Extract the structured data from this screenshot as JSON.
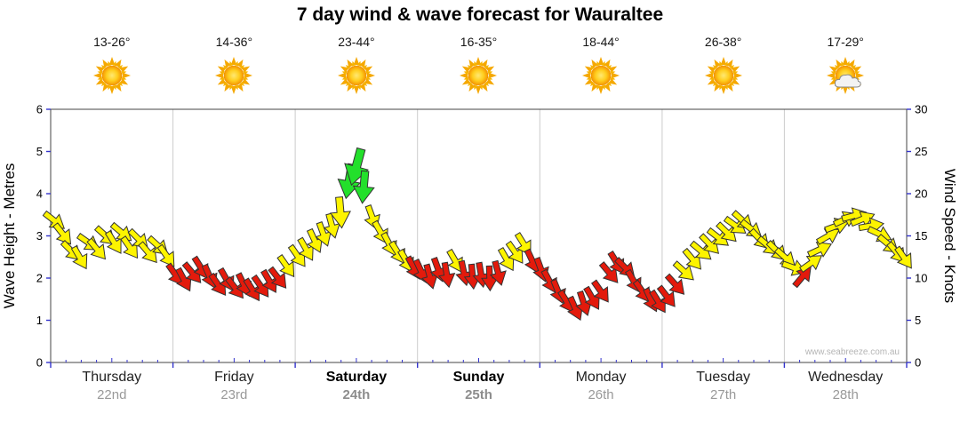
{
  "title": "7 day wind & wave forecast for Wauraltee",
  "watermark": "www.seabreeze.com.au",
  "days": [
    {
      "name": "Thursday",
      "date": "22nd",
      "temp": "13-26°",
      "icon": "sun",
      "weekend": false
    },
    {
      "name": "Friday",
      "date": "23rd",
      "temp": "14-36°",
      "icon": "sun",
      "weekend": false
    },
    {
      "name": "Saturday",
      "date": "24th",
      "temp": "23-44°",
      "icon": "sun",
      "weekend": true
    },
    {
      "name": "Sunday",
      "date": "25th",
      "temp": "16-35°",
      "icon": "sun",
      "weekend": true
    },
    {
      "name": "Monday",
      "date": "26th",
      "temp": "18-44°",
      "icon": "sun",
      "weekend": false
    },
    {
      "name": "Tuesday",
      "date": "27th",
      "temp": "26-38°",
      "icon": "sun",
      "weekend": false
    },
    {
      "name": "Wednesday",
      "date": "28th",
      "temp": "17-29°",
      "icon": "sun-cloud",
      "weekend": false
    }
  ],
  "axes": {
    "left_label": "Wave Height - Metres",
    "right_label": "Wind Speed - Knots",
    "left_ticks": [
      0,
      1,
      2,
      3,
      4,
      5,
      6
    ],
    "right_ticks": [
      0,
      5,
      10,
      15,
      20,
      25,
      30
    ],
    "left_range": [
      0,
      6
    ],
    "right_range": [
      0,
      30
    ]
  },
  "colors": {
    "red": "#e31a0c",
    "yellow": "#fdf400",
    "green": "#23e02b",
    "arrow_outline": "#333333",
    "tick": "#3333cc",
    "grid": "#cccccc",
    "border": "#444444",
    "watermark": "#b5b5b5"
  },
  "chart_data": {
    "type": "wind-arrows",
    "title": "7 day wind & wave forecast for Wauraltee",
    "x_axis": "time in days (0 = Thursday 22nd start, 7 = end of Wednesday 28th)",
    "y_axis": "wind speed in knots (right axis 0-30); left axis wave height metres 0-6",
    "point_format": [
      "t_days",
      "knots",
      "direction_deg",
      "color(r|y|g)",
      "scale(optional)"
    ],
    "points": [
      [
        0.03,
        16.8,
        38,
        "y"
      ],
      [
        0.1,
        15.2,
        52,
        "y"
      ],
      [
        0.17,
        13.2,
        45,
        "y"
      ],
      [
        0.24,
        12.4,
        60,
        "y"
      ],
      [
        0.31,
        14.2,
        35,
        "y"
      ],
      [
        0.38,
        13.4,
        50,
        "y"
      ],
      [
        0.45,
        15.0,
        42,
        "y"
      ],
      [
        0.52,
        14.2,
        58,
        "y"
      ],
      [
        0.58,
        15.4,
        40,
        "y"
      ],
      [
        0.65,
        13.6,
        55,
        "y"
      ],
      [
        0.72,
        14.6,
        45,
        "y"
      ],
      [
        0.8,
        13.0,
        50,
        "y"
      ],
      [
        0.88,
        13.8,
        42,
        "y"
      ],
      [
        0.95,
        12.6,
        55,
        "y"
      ],
      [
        1.02,
        10.4,
        55,
        "r"
      ],
      [
        1.09,
        9.8,
        62,
        "r"
      ],
      [
        1.16,
        10.6,
        50,
        "r"
      ],
      [
        1.23,
        11.2,
        58,
        "r"
      ],
      [
        1.3,
        10.2,
        66,
        "r"
      ],
      [
        1.37,
        9.2,
        55,
        "r"
      ],
      [
        1.44,
        9.8,
        60,
        "r"
      ],
      [
        1.51,
        8.8,
        52,
        "r"
      ],
      [
        1.58,
        9.2,
        64,
        "r"
      ],
      [
        1.65,
        8.6,
        58,
        "r"
      ],
      [
        1.72,
        9.0,
        55,
        "r"
      ],
      [
        1.79,
        9.6,
        60,
        "r"
      ],
      [
        1.86,
        10.0,
        52,
        "r"
      ],
      [
        1.93,
        11.4,
        55,
        "y"
      ],
      [
        2.02,
        12.6,
        55,
        "y"
      ],
      [
        2.09,
        13.4,
        60,
        "y"
      ],
      [
        2.16,
        14.4,
        65,
        "y"
      ],
      [
        2.23,
        15.2,
        70,
        "y"
      ],
      [
        2.3,
        16.2,
        75,
        "y"
      ],
      [
        2.37,
        17.8,
        85,
        "y",
        1.25
      ],
      [
        2.44,
        21.5,
        100,
        "g",
        1.4
      ],
      [
        2.5,
        23.2,
        105,
        "g",
        1.5
      ],
      [
        2.56,
        20.8,
        95,
        "g",
        1.3
      ],
      [
        2.63,
        17.2,
        70,
        "y"
      ],
      [
        2.7,
        15.4,
        60,
        "y"
      ],
      [
        2.77,
        14.0,
        62,
        "y"
      ],
      [
        2.84,
        13.0,
        58,
        "y"
      ],
      [
        2.91,
        12.0,
        60,
        "y"
      ],
      [
        2.97,
        11.2,
        62,
        "r"
      ],
      [
        3.03,
        10.8,
        65,
        "r"
      ],
      [
        3.1,
        10.2,
        75,
        "r"
      ],
      [
        3.17,
        11.0,
        70,
        "r"
      ],
      [
        3.24,
        10.4,
        80,
        "r"
      ],
      [
        3.31,
        12.0,
        60,
        "y"
      ],
      [
        3.38,
        10.6,
        78,
        "r"
      ],
      [
        3.45,
        10.2,
        85,
        "r"
      ],
      [
        3.52,
        10.4,
        80,
        "r"
      ],
      [
        3.59,
        10.0,
        88,
        "r"
      ],
      [
        3.66,
        10.6,
        75,
        "r"
      ],
      [
        3.73,
        12.2,
        60,
        "y"
      ],
      [
        3.8,
        13.0,
        55,
        "y"
      ],
      [
        3.87,
        14.0,
        58,
        "y"
      ],
      [
        3.94,
        12.0,
        65,
        "r"
      ],
      [
        4.01,
        11.0,
        70,
        "r"
      ],
      [
        4.08,
        9.6,
        62,
        "r"
      ],
      [
        4.15,
        8.4,
        68,
        "r"
      ],
      [
        4.22,
        7.2,
        58,
        "r"
      ],
      [
        4.29,
        6.4,
        66,
        "r"
      ],
      [
        4.36,
        7.0,
        72,
        "r"
      ],
      [
        4.43,
        7.6,
        60,
        "r"
      ],
      [
        4.5,
        8.4,
        55,
        "r"
      ],
      [
        4.57,
        10.6,
        50,
        "r"
      ],
      [
        4.63,
        11.8,
        58,
        "r"
      ],
      [
        4.7,
        11.2,
        45,
        "r"
      ],
      [
        4.77,
        9.6,
        60,
        "r"
      ],
      [
        4.84,
        8.4,
        55,
        "r"
      ],
      [
        4.91,
        7.4,
        65,
        "r"
      ],
      [
        4.97,
        7.2,
        58,
        "r"
      ],
      [
        5.04,
        7.8,
        52,
        "r"
      ],
      [
        5.11,
        9.2,
        48,
        "r"
      ],
      [
        5.18,
        10.8,
        42,
        "y"
      ],
      [
        5.25,
        12.2,
        50,
        "y"
      ],
      [
        5.32,
        13.2,
        40,
        "y"
      ],
      [
        5.39,
        14.0,
        46,
        "y"
      ],
      [
        5.46,
        14.8,
        38,
        "y"
      ],
      [
        5.53,
        15.4,
        44,
        "y"
      ],
      [
        5.6,
        16.2,
        36,
        "y"
      ],
      [
        5.66,
        16.8,
        42,
        "y"
      ],
      [
        5.73,
        15.8,
        38,
        "y"
      ],
      [
        5.8,
        14.6,
        46,
        "y"
      ],
      [
        5.87,
        13.8,
        40,
        "y"
      ],
      [
        5.94,
        13.2,
        45,
        "y"
      ],
      [
        6.01,
        12.4,
        42,
        "y"
      ],
      [
        6.08,
        11.2,
        20,
        "y"
      ],
      [
        6.15,
        10.2,
        -50,
        "r"
      ],
      [
        6.22,
        11.8,
        -35,
        "y"
      ],
      [
        6.29,
        13.4,
        -25,
        "y"
      ],
      [
        6.36,
        15.0,
        -30,
        "y"
      ],
      [
        6.43,
        16.2,
        -20,
        "y"
      ],
      [
        6.5,
        17.0,
        -25,
        "y"
      ],
      [
        6.57,
        17.4,
        -15,
        "y"
      ],
      [
        6.64,
        17.0,
        -22,
        "y"
      ],
      [
        6.71,
        16.2,
        -10,
        "y"
      ],
      [
        6.78,
        15.2,
        25,
        "y"
      ],
      [
        6.85,
        14.0,
        40,
        "y"
      ],
      [
        6.92,
        13.0,
        50,
        "y"
      ],
      [
        6.98,
        12.4,
        55,
        "y"
      ]
    ]
  }
}
